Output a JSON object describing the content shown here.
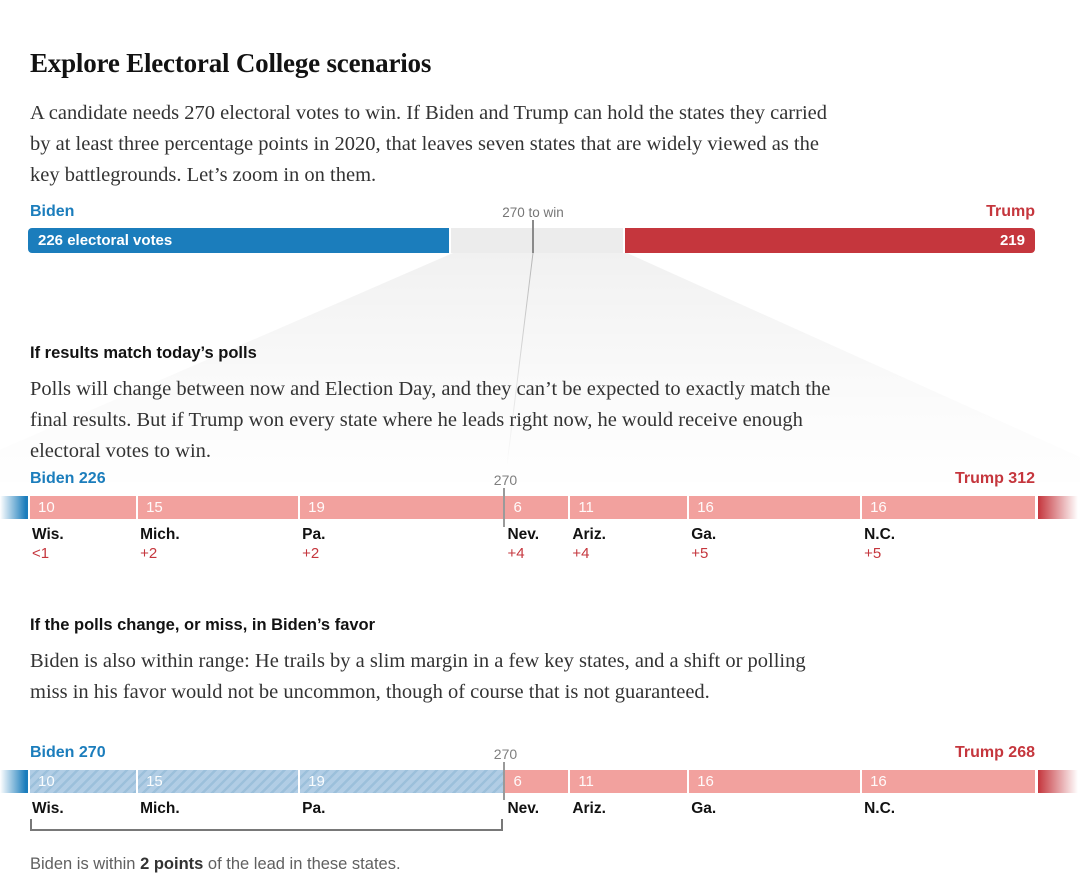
{
  "header": {
    "title": "Explore Electoral College scenarios",
    "intro": "A candidate needs 270 electoral votes to win. If Biden and Trump can hold the states they carried by at least three percentage points in 2020, that leaves seven states that are widely viewed as the key battlegrounds. Let’s zoom in on them."
  },
  "sections": {
    "polls": {
      "heading": "If results match today’s polls",
      "body": "Polls will change between now and Election Day, and they can’t be expected to exactly match the final results. But if Trump won every state where he leads right now, he would receive enough electoral votes to win."
    },
    "biden_shift": {
      "heading": "If the polls change, or miss, in Biden’s favor",
      "body": "Biden is also within range: He trails by a slim margin in a few key states, and a shift or polling miss in his favor would not be uncommon, though of course that is not guaranteed."
    }
  },
  "colors": {
    "biden_blue": "#1b7dbc",
    "trump_red": "#c5363d",
    "lean_r_pink": "#f2a19e",
    "lean_d_blue_hatch": "#b1cde5",
    "tossup_gray": "#ececec",
    "marker_gray": "#8a8a8a"
  },
  "chart_data": [
    {
      "type": "bar",
      "name": "overview-electoral-votes",
      "total_ev": 538,
      "win_ev": 270,
      "label_left": "Biden",
      "label_right": "Trump",
      "marker_label": "270 to win",
      "segments": [
        {
          "name": "Biden",
          "ev": 226,
          "color": "blue",
          "label": "226 electoral votes"
        },
        {
          "name": "Battlegrounds",
          "ev": 93,
          "color": "gray"
        },
        {
          "name": "Trump",
          "ev": 219,
          "color": "red",
          "label": "219",
          "align": "right"
        }
      ]
    },
    {
      "type": "bar",
      "name": "if-results-match-todays-polls",
      "label_left": "Biden 226",
      "label_right": "Trump 312",
      "marker_label": "270",
      "marker_value": 270,
      "biden_base_ev": 226,
      "biden_total": 226,
      "trump_total": 312,
      "states": [
        {
          "abbr": "Wis.",
          "ev": 10,
          "fill": "lean-r",
          "margin": "<1"
        },
        {
          "abbr": "Mich.",
          "ev": 15,
          "fill": "lean-r",
          "margin": "+2"
        },
        {
          "abbr": "Pa.",
          "ev": 19,
          "fill": "lean-r",
          "margin": "+2"
        },
        {
          "abbr": "Nev.",
          "ev": 6,
          "fill": "lean-r",
          "margin": "+4"
        },
        {
          "abbr": "Ariz.",
          "ev": 11,
          "fill": "lean-r",
          "margin": "+4"
        },
        {
          "abbr": "Ga.",
          "ev": 16,
          "fill": "lean-r",
          "margin": "+5"
        },
        {
          "abbr": "N.C.",
          "ev": 16,
          "fill": "lean-r",
          "margin": "+5"
        }
      ]
    },
    {
      "type": "bar",
      "name": "if-polls-shift-to-biden",
      "label_left": "Biden 270",
      "label_right": "Trump 268",
      "marker_label": "270",
      "marker_value": 270,
      "biden_base_ev": 226,
      "biden_total": 270,
      "trump_total": 268,
      "states": [
        {
          "abbr": "Wis.",
          "ev": 10,
          "fill": "lean-d"
        },
        {
          "abbr": "Mich.",
          "ev": 15,
          "fill": "lean-d"
        },
        {
          "abbr": "Pa.",
          "ev": 19,
          "fill": "lean-d"
        },
        {
          "abbr": "Nev.",
          "ev": 6,
          "fill": "lean-r"
        },
        {
          "abbr": "Ariz.",
          "ev": 11,
          "fill": "lean-r"
        },
        {
          "abbr": "Ga.",
          "ev": 16,
          "fill": "lean-r"
        },
        {
          "abbr": "N.C.",
          "ev": 16,
          "fill": "lean-r"
        }
      ],
      "bracket_note": {
        "pre": "Biden is within ",
        "bold": "2 points",
        "post": " of the lead in these states."
      }
    }
  ]
}
